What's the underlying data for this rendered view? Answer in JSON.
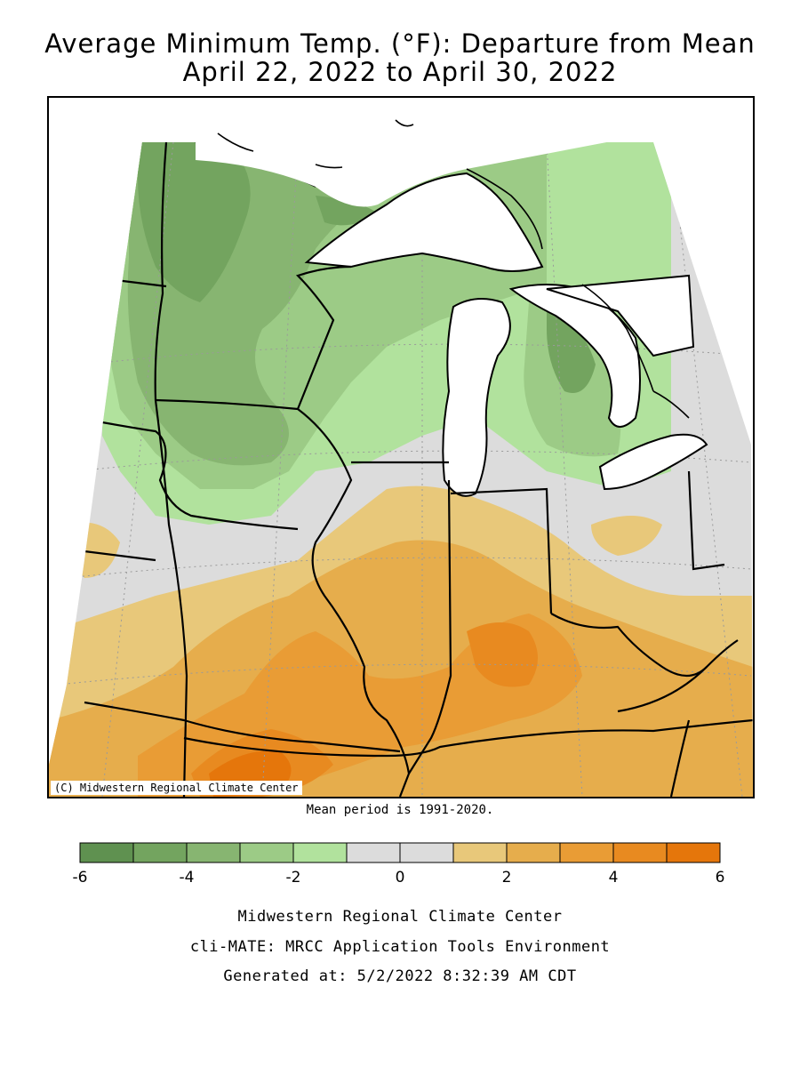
{
  "title_line1": "Average Minimum Temp. (°F): Departure from Mean",
  "title_line2": "April 22, 2022 to April 30, 2022",
  "copyright": "(C) Midwestern Regional Climate Center",
  "mean_period": "Mean period is 1991-2020.",
  "legend": {
    "colors": [
      "#5f9150",
      "#73a45f",
      "#87b571",
      "#9ccb86",
      "#b1e29d",
      "#dcdcdc",
      "#dcdcdc",
      "#e8c87a",
      "#e6ad4c",
      "#e99c35",
      "#e88a20",
      "#e5760b"
    ],
    "ticks": [
      "-6",
      "-4",
      "-2",
      "0",
      "2",
      "4",
      "6"
    ]
  },
  "footer": {
    "line1": "Midwestern Regional Climate Center",
    "line2": "cli-MATE: MRCC Application Tools Environment",
    "line3": "Generated at: 5/2/2022 8:32:39 AM CDT"
  },
  "map_colors": {
    "green_dark": "#73a45f",
    "green_mid": "#87b571",
    "green_light": "#9ccb86",
    "green_pale": "#b1e29d",
    "neutral": "#dcdcdc",
    "orange_pale": "#e8c87a",
    "orange_light": "#e6ad4c",
    "orange_mid": "#e99c35",
    "orange_dark": "#e88a20",
    "orange_deep": "#e5760b",
    "water": "#ffffff",
    "border": "#000000"
  }
}
